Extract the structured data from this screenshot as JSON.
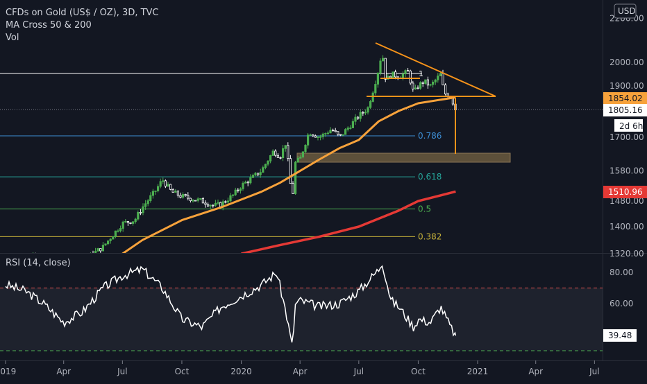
{
  "header": {
    "symbol": "CFDs on Gold (US$ / OZ), 3D, TVC",
    "indicator": "MA Cross 50 & 200",
    "volume": "Vol"
  },
  "currency_label": "USD",
  "rsi_title": "RSI (14, close)",
  "price_tags": {
    "orange": "1854.02",
    "close": "1805.16",
    "countdown": "2d 6h",
    "ma200": "1510.96",
    "rsi": "39.48"
  },
  "fib": {
    "f786": "0.786",
    "f618": "0.618",
    "f5": "0.5",
    "f382": "0.382"
  },
  "annotations": {
    "wave": "1"
  },
  "colors": {
    "background": "#131722",
    "up": "#26a69a",
    "green": "#4caf50",
    "down": "#ffffff",
    "ma50": "#f7a23b",
    "ma200": "#e53935",
    "fib786": "#3d8fd6",
    "fib618": "#26a69a",
    "fib5": "#4caf50",
    "pattern": "#f7931a",
    "rsi": "#ffffff",
    "rsi_bands": "#ef5350",
    "rsi_low": "#4caf50",
    "box": "#6b5a3e"
  },
  "chart_data": [
    {
      "type": "line",
      "title": "CFDs on Gold (US$ / OZ), 3D, TVC",
      "yaxis": {
        "ticks": [
          2200,
          2000,
          1900,
          1800,
          1700,
          1580,
          1480,
          1400,
          1320
        ],
        "tick_labels": [
          "2200.00",
          "2000.00",
          "1900.00",
          "1800.00",
          "1700.00",
          "1580.00",
          "1480.00",
          "1400.00",
          "1320.00"
        ],
        "scale": "log"
      },
      "xaxis": {
        "ticks": [
          "2019",
          "Apr",
          "Jul",
          "Oct",
          "2020",
          "Apr",
          "Jul",
          "Oct",
          "2021",
          "Apr",
          "Jul"
        ]
      },
      "series": [
        {
          "name": "price",
          "points": [
            [
              "2019-01",
              1285
            ],
            [
              "2019-02",
              1320
            ],
            [
              "2019-03",
              1300
            ],
            [
              "2019-04",
              1285
            ],
            [
              "2019-05",
              1300
            ],
            [
              "2019-06",
              1340
            ],
            [
              "2019-07",
              1410
            ],
            [
              "2019-07-20",
              1420
            ],
            [
              "2019-08",
              1460
            ],
            [
              "2019-08-20",
              1510
            ],
            [
              "2019-09",
              1550
            ],
            [
              "2019-09-15",
              1510
            ],
            [
              "2019-10",
              1495
            ],
            [
              "2019-11",
              1480
            ],
            [
              "2019-11-20",
              1465
            ],
            [
              "2019-12",
              1470
            ],
            [
              "2019-12-20",
              1500
            ],
            [
              "2020-01",
              1530
            ],
            [
              "2020-01-20",
              1560
            ],
            [
              "2020-02",
              1580
            ],
            [
              "2020-02-20",
              1650
            ],
            [
              "2020-03",
              1630
            ],
            [
              "2020-03-10",
              1680
            ],
            [
              "2020-03-20",
              1480
            ],
            [
              "2020-03-25",
              1610
            ],
            [
              "2020-04",
              1620
            ],
            [
              "2020-04-15",
              1720
            ],
            [
              "2020-05",
              1700
            ],
            [
              "2020-05-20",
              1730
            ],
            [
              "2020-06",
              1700
            ],
            [
              "2020-06-20",
              1750
            ],
            [
              "2020-07",
              1780
            ],
            [
              "2020-07-15",
              1810
            ],
            [
              "2020-07-25",
              1900
            ],
            [
              "2020-08-01",
              1975
            ],
            [
              "2020-08-06",
              2050
            ],
            [
              "2020-08-12",
              1920
            ],
            [
              "2020-08-20",
              1950
            ],
            [
              "2020-09",
              1940
            ],
            [
              "2020-09-15",
              1960
            ],
            [
              "2020-09-24",
              1870
            ],
            [
              "2020-10",
              1900
            ],
            [
              "2020-10-10",
              1920
            ],
            [
              "2020-10-20",
              1900
            ],
            [
              "2020-11-05",
              1950
            ],
            [
              "2020-11-10",
              1870
            ],
            [
              "2020-11-20",
              1860
            ],
            [
              "2020-11-28",
              1805
            ]
          ]
        },
        {
          "name": "MA Cross 50",
          "points": [
            [
              "2019-07",
              1320
            ],
            [
              "2019-08",
              1360
            ],
            [
              "2019-10",
              1420
            ],
            [
              "2019-12",
              1460
            ],
            [
              "2020-02",
              1510
            ],
            [
              "2020-03",
              1540
            ],
            [
              "2020-04",
              1580
            ],
            [
              "2020-05",
              1620
            ],
            [
              "2020-06",
              1660
            ],
            [
              "2020-07",
              1690
            ],
            [
              "2020-08",
              1760
            ],
            [
              "2020-09",
              1800
            ],
            [
              "2020-10",
              1830
            ],
            [
              "2020-11-28",
              1854
            ]
          ]
        },
        {
          "name": "MA Cross 200",
          "points": [
            [
              "2020-01",
              1320
            ],
            [
              "2020-03",
              1345
            ],
            [
              "2020-05",
              1370
            ],
            [
              "2020-07",
              1400
            ],
            [
              "2020-09",
              1450
            ],
            [
              "2020-10",
              1480
            ],
            [
              "2020-11-28",
              1511
            ]
          ]
        }
      ],
      "fibonacci": [
        {
          "level": "0.786",
          "price": 1705
        },
        {
          "level": "0.618",
          "price": 1560
        },
        {
          "level": "0.5",
          "price": 1455
        },
        {
          "level": "0.382",
          "price": 1370
        }
      ],
      "last_price": 1805.16
    },
    {
      "type": "line",
      "title": "RSI (14, close)",
      "yaxis": {
        "ticks": [
          80,
          60
        ],
        "tick_labels": [
          "80.00",
          "60.00"
        ]
      },
      "bands": [
        70,
        30
      ],
      "series": [
        {
          "name": "RSI",
          "points": [
            [
              "2019-01",
              72
            ],
            [
              "2019-02",
              68
            ],
            [
              "2019-03",
              60
            ],
            [
              "2019-04",
              48
            ],
            [
              "2019-05",
              55
            ],
            [
              "2019-06",
              70
            ],
            [
              "2019-07",
              78
            ],
            [
              "2019-08",
              82
            ],
            [
              "2019-09",
              70
            ],
            [
              "2019-10",
              50
            ],
            [
              "2019-11",
              45
            ],
            [
              "2019-12",
              58
            ],
            [
              "2020-01",
              65
            ],
            [
              "2020-02",
              72
            ],
            [
              "2020-02-25",
              80
            ],
            [
              "2020-03-10",
              55
            ],
            [
              "2020-03-20",
              32
            ],
            [
              "2020-03-25",
              60
            ],
            [
              "2020-04",
              62
            ],
            [
              "2020-05",
              58
            ],
            [
              "2020-06",
              60
            ],
            [
              "2020-07",
              68
            ],
            [
              "2020-08-01",
              82
            ],
            [
              "2020-08-06",
              87
            ],
            [
              "2020-08-20",
              62
            ],
            [
              "2020-09",
              58
            ],
            [
              "2020-09-24",
              45
            ],
            [
              "2020-10",
              50
            ],
            [
              "2020-10-20",
              48
            ],
            [
              "2020-11-05",
              58
            ],
            [
              "2020-11-20",
              45
            ],
            [
              "2020-11-28",
              39.48
            ]
          ]
        }
      ],
      "last_value": 39.48
    }
  ]
}
